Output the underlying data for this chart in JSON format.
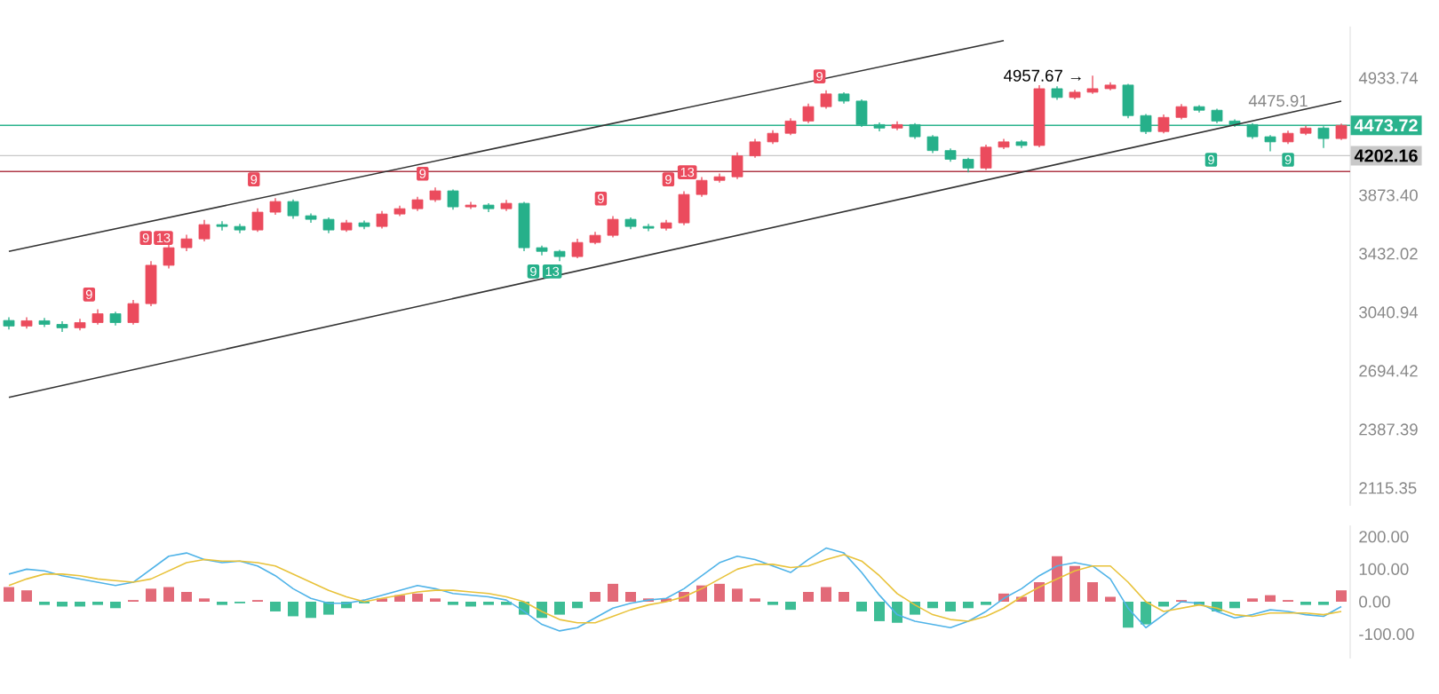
{
  "chart_data": [
    {
      "type": "candlestick",
      "log": "y",
      "tick_labels": "y",
      "ylim": [
        2039,
        5487
      ],
      "yticks": [
        4933.74,
        {
          "value": 3873.4,
          "label": "3873.40"
        },
        3432.02,
        3040.94,
        2694.42,
        2387.39,
        2115.35
      ],
      "categories": [
        null,
        null,
        null,
        null,
        null,
        null,
        null,
        null,
        null,
        null,
        null,
        null,
        null,
        null,
        null,
        null,
        null,
        null,
        null,
        null,
        null,
        null,
        null,
        null,
        null,
        null,
        null,
        null,
        null,
        null,
        null,
        null,
        null,
        null,
        null,
        null,
        null,
        null,
        null,
        null,
        null,
        null,
        null,
        null,
        null,
        null,
        null,
        null,
        null,
        null,
        null,
        null,
        null,
        null,
        null,
        null,
        null,
        null,
        null,
        null,
        null,
        null,
        null,
        null,
        null,
        null,
        null,
        null,
        null,
        null,
        null,
        null,
        null,
        null,
        null,
        null
      ],
      "ohlc": [
        [
          2990,
          3010,
          2935,
          2956
        ],
        [
          2956,
          3010,
          2940,
          2988
        ],
        [
          2988,
          3005,
          2950,
          2966
        ],
        [
          2966,
          2985,
          2920,
          2945
        ],
        [
          2945,
          3000,
          2930,
          2977
        ],
        [
          2977,
          3060,
          2965,
          3032
        ],
        [
          3032,
          3045,
          2960,
          2977
        ],
        [
          2977,
          3120,
          2965,
          3096
        ],
        [
          3096,
          3380,
          3080,
          3351
        ],
        [
          3351,
          3510,
          3330,
          3475
        ],
        [
          3475,
          3570,
          3450,
          3539
        ],
        [
          3539,
          3680,
          3520,
          3645
        ],
        [
          3645,
          3670,
          3600,
          3631
        ],
        [
          3631,
          3650,
          3580,
          3605
        ],
        [
          3605,
          3770,
          3590,
          3740
        ],
        [
          3740,
          3850,
          3720,
          3823
        ],
        [
          3823,
          3840,
          3690,
          3712
        ],
        [
          3712,
          3730,
          3660,
          3685
        ],
        [
          3685,
          3700,
          3580,
          3605
        ],
        [
          3605,
          3680,
          3590,
          3658
        ],
        [
          3658,
          3675,
          3610,
          3631
        ],
        [
          3631,
          3750,
          3615,
          3726
        ],
        [
          3726,
          3790,
          3710,
          3767
        ],
        [
          3767,
          3860,
          3750,
          3837
        ],
        [
          3837,
          3935,
          3820,
          3908
        ],
        [
          3908,
          3920,
          3760,
          3781
        ],
        [
          3781,
          3820,
          3765,
          3795
        ],
        [
          3795,
          3810,
          3740,
          3767
        ],
        [
          3767,
          3835,
          3750,
          3809
        ],
        [
          3809,
          3820,
          3450,
          3475
        ],
        [
          3475,
          3490,
          3420,
          3449
        ],
        [
          3449,
          3460,
          3380,
          3412
        ],
        [
          3412,
          3540,
          3400,
          3513
        ],
        [
          3513,
          3590,
          3500,
          3565
        ],
        [
          3565,
          3710,
          3550,
          3685
        ],
        [
          3685,
          3700,
          3610,
          3631
        ],
        [
          3631,
          3650,
          3595,
          3618
        ],
        [
          3618,
          3680,
          3600,
          3658
        ],
        [
          3658,
          3905,
          3640,
          3879
        ],
        [
          3879,
          4020,
          3860,
          3994
        ],
        [
          3994,
          4050,
          3975,
          4023
        ],
        [
          4023,
          4230,
          4005,
          4201
        ],
        [
          4201,
          4350,
          4185,
          4324
        ],
        [
          4324,
          4430,
          4305,
          4401
        ],
        [
          4401,
          4540,
          4385,
          4514
        ],
        [
          4514,
          4680,
          4495,
          4650
        ],
        [
          4650,
          4810,
          4630,
          4774
        ],
        [
          4774,
          4790,
          4680,
          4704
        ],
        [
          4704,
          4720,
          4460,
          4481
        ],
        [
          4481,
          4500,
          4420,
          4449
        ],
        [
          4449,
          4510,
          4430,
          4481
        ],
        [
          4481,
          4495,
          4350,
          4370
        ],
        [
          4370,
          4385,
          4225,
          4247
        ],
        [
          4247,
          4265,
          4150,
          4171
        ],
        [
          4171,
          4185,
          4060,
          4096
        ],
        [
          4096,
          4300,
          4080,
          4277
        ],
        [
          4277,
          4350,
          4260,
          4324
        ],
        [
          4324,
          4340,
          4270,
          4292
        ],
        [
          4292,
          4860,
          4275,
          4826
        ],
        [
          4826,
          4850,
          4715,
          4739
        ],
        [
          4739,
          4815,
          4720,
          4791
        ],
        [
          4791,
          4957.67,
          4775,
          4826
        ],
        [
          4826,
          4890,
          4810,
          4862
        ],
        [
          4862,
          4875,
          4540,
          4565
        ],
        [
          4565,
          4580,
          4395,
          4417
        ],
        [
          4417,
          4575,
          4400,
          4548
        ],
        [
          4548,
          4675,
          4530,
          4650
        ],
        [
          4650,
          4665,
          4595,
          4616
        ],
        [
          4616,
          4630,
          4495,
          4514
        ],
        [
          4514,
          4530,
          4460,
          4481
        ],
        [
          4481,
          4495,
          4350,
          4370
        ],
        [
          4370,
          4385,
          4240,
          4324
        ],
        [
          4324,
          4425,
          4305,
          4401
        ],
        [
          4401,
          4470,
          4385,
          4449
        ],
        [
          4449,
          4465,
          4270,
          4354
        ],
        [
          4354,
          4490,
          4340,
          4473.72
        ]
      ],
      "series": [
        {
          "type": "line",
          "color": "#333333",
          "values": [
            3449,
            null,
            null,
            null,
            null,
            null,
            null,
            null,
            null,
            null,
            null,
            null,
            null,
            null,
            null,
            null,
            null,
            null,
            null,
            null,
            null,
            null,
            null,
            null,
            null,
            null,
            null,
            null,
            null,
            null,
            null,
            null,
            null,
            null,
            null,
            null,
            null,
            null,
            null,
            null,
            null,
            null,
            null,
            null,
            null,
            null,
            null,
            null,
            null,
            null,
            null,
            null,
            null,
            null,
            null,
            null,
            5330,
            null,
            null,
            null,
            null,
            null,
            null,
            null,
            null,
            null,
            null,
            null,
            null,
            null,
            null,
            null,
            null,
            null,
            null,
            null
          ]
        },
        {
          "type": "line",
          "color": "#333333",
          "values": [
            2551,
            null,
            null,
            null,
            null,
            null,
            null,
            null,
            null,
            null,
            null,
            null,
            null,
            null,
            null,
            null,
            null,
            null,
            null,
            null,
            null,
            null,
            null,
            null,
            null,
            null,
            null,
            null,
            null,
            null,
            null,
            null,
            null,
            null,
            null,
            null,
            null,
            null,
            null,
            null,
            null,
            null,
            null,
            null,
            null,
            null,
            null,
            null,
            null,
            null,
            null,
            null,
            null,
            null,
            null,
            null,
            null,
            null,
            null,
            null,
            null,
            null,
            null,
            null,
            null,
            null,
            null,
            null,
            null,
            null,
            null,
            null,
            null,
            null,
            null,
            4704
          ]
        }
      ],
      "ref_lines": [
        {
          "axis": "y",
          "value": 4067,
          "color": "#b03a48"
        },
        {
          "axis": "y",
          "value": 4202.16,
          "label": "4202.16",
          "color": "#c8c8c8"
        },
        {
          "axis": "y",
          "value": 4473.72,
          "label": "4473.72",
          "color": "#2bb38d"
        }
      ],
      "annotations": [
        "4957.67 →",
        "4475.91",
        "9",
        "9",
        "13",
        "9",
        "9",
        "9",
        "9",
        "13",
        "9",
        "9",
        "13",
        "9",
        "9"
      ]
    },
    {
      "type": "bar",
      "tick_labels": "y",
      "ylim": [
        -175,
        235
      ],
      "yticks": [
        {
          "value": 200,
          "label": "200.00"
        },
        {
          "value": 100,
          "label": "100.00"
        },
        {
          "value": 0,
          "label": "0.00"
        },
        {
          "value": -100,
          "label": "-100.00"
        }
      ],
      "categories": [
        null,
        null,
        null,
        null,
        null,
        null,
        null,
        null,
        null,
        null,
        null,
        null,
        null,
        null,
        null,
        null,
        null,
        null,
        null,
        null,
        null,
        null,
        null,
        null,
        null,
        null,
        null,
        null,
        null,
        null,
        null,
        null,
        null,
        null,
        null,
        null,
        null,
        null,
        null,
        null,
        null,
        null,
        null,
        null,
        null,
        null,
        null,
        null,
        null,
        null,
        null,
        null,
        null,
        null,
        null,
        null,
        null,
        null,
        null,
        null,
        null,
        null,
        null,
        null,
        null,
        null,
        null,
        null,
        null,
        null,
        null,
        null,
        null,
        null,
        null,
        null
      ],
      "series": [
        {
          "type": "bar",
          "values": [
            45,
            35,
            -10,
            -15,
            -15,
            -10,
            -20,
            5,
            40,
            45,
            30,
            10,
            -10,
            -5,
            5,
            -30,
            -45,
            -50,
            -40,
            -20,
            -5,
            10,
            20,
            25,
            10,
            -10,
            -15,
            -10,
            -10,
            -40,
            -50,
            -40,
            -20,
            30,
            55,
            30,
            10,
            10,
            30,
            50,
            55,
            40,
            10,
            -10,
            -25,
            30,
            45,
            30,
            -30,
            -60,
            -65,
            -40,
            -20,
            -30,
            -20,
            -10,
            25,
            15,
            60,
            140,
            110,
            60,
            15,
            -80,
            -70,
            -15,
            5,
            -10,
            -30,
            -20,
            10,
            20,
            5,
            -10,
            -10,
            35
          ],
          "colors": [
            "#e26a78",
            "#e26a78",
            "#3dbd95",
            "#3dbd95",
            "#3dbd95",
            "#3dbd95",
            "#3dbd95",
            "#e26a78",
            "#e26a78",
            "#e26a78",
            "#e26a78",
            "#e26a78",
            "#3dbd95",
            "#3dbd95",
            "#e26a78",
            "#3dbd95",
            "#3dbd95",
            "#3dbd95",
            "#3dbd95",
            "#3dbd95",
            "#3dbd95",
            "#e26a78",
            "#e26a78",
            "#e26a78",
            "#e26a78",
            "#3dbd95",
            "#3dbd95",
            "#3dbd95",
            "#3dbd95",
            "#3dbd95",
            "#3dbd95",
            "#3dbd95",
            "#3dbd95",
            "#e26a78",
            "#e26a78",
            "#e26a78",
            "#e26a78",
            "#e26a78",
            "#e26a78",
            "#e26a78",
            "#e26a78",
            "#e26a78",
            "#e26a78",
            "#3dbd95",
            "#3dbd95",
            "#e26a78",
            "#e26a78",
            "#e26a78",
            "#3dbd95",
            "#3dbd95",
            "#3dbd95",
            "#3dbd95",
            "#3dbd95",
            "#3dbd95",
            "#3dbd95",
            "#3dbd95",
            "#e26a78",
            "#e26a78",
            "#e26a78",
            "#e26a78",
            "#e26a78",
            "#e26a78",
            "#e26a78",
            "#3dbd95",
            "#3dbd95",
            "#3dbd95",
            "#e26a78",
            "#3dbd95",
            "#3dbd95",
            "#3dbd95",
            "#e26a78",
            "#e26a78",
            "#e26a78",
            "#3dbd95",
            "#3dbd95",
            "#e26a78"
          ]
        },
        {
          "type": "line",
          "color": "#4fb3e8",
          "values": [
            85,
            100,
            95,
            80,
            70,
            60,
            50,
            60,
            100,
            140,
            150,
            130,
            120,
            125,
            110,
            80,
            40,
            10,
            -5,
            -5,
            5,
            20,
            35,
            50,
            40,
            25,
            20,
            15,
            5,
            -30,
            -70,
            -90,
            -80,
            -50,
            -20,
            -5,
            5,
            10,
            40,
            80,
            120,
            140,
            130,
            110,
            90,
            130,
            165,
            150,
            90,
            20,
            -40,
            -60,
            -70,
            -80,
            -60,
            -30,
            10,
            40,
            80,
            110,
            120,
            110,
            70,
            -20,
            -80,
            -40,
            0,
            -5,
            -30,
            -50,
            -40,
            -25,
            -30,
            -40,
            -45,
            -15
          ]
        },
        {
          "type": "line",
          "color": "#e8c23a",
          "values": [
            50,
            70,
            85,
            85,
            80,
            70,
            65,
            60,
            70,
            95,
            120,
            130,
            125,
            125,
            120,
            110,
            85,
            60,
            35,
            15,
            0,
            10,
            20,
            30,
            35,
            35,
            30,
            25,
            15,
            0,
            -30,
            -55,
            -65,
            -65,
            -45,
            -25,
            -10,
            0,
            15,
            40,
            70,
            100,
            115,
            115,
            105,
            110,
            130,
            145,
            125,
            80,
            25,
            -10,
            -40,
            -55,
            -60,
            -45,
            -20,
            15,
            45,
            70,
            95,
            110,
            110,
            60,
            0,
            -30,
            -20,
            -10,
            -20,
            -40,
            -45,
            -35,
            -35,
            -35,
            -40,
            -30
          ]
        }
      ]
    }
  ]
}
